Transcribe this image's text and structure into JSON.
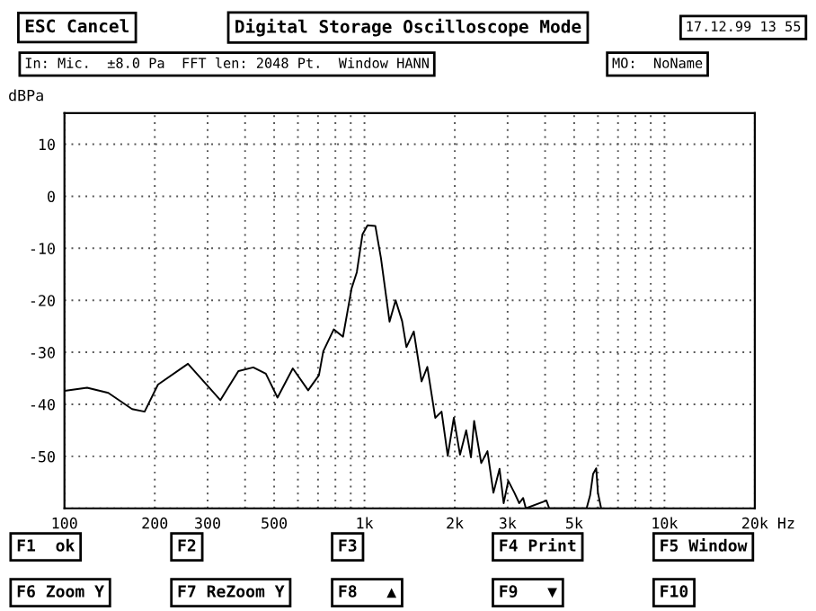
{
  "chart_data": {
    "type": "line",
    "title": "Digital Storage Oscilloscope Mode",
    "ylabel": "dBPa",
    "annotations": [
      "ESC Cancel",
      "17.12.99 13 55",
      "In: Mic.  ±8.0 Pa  FFT len: 2048 Pt.  Window HANN",
      "MO:  NoName",
      "F1  ok",
      "F2",
      "F3",
      "F4 Print",
      "F5 Window",
      "F6 Zoom Y",
      "F7 ReZoom Y",
      "F8   ▲",
      "F9   ▼",
      "F10"
    ],
    "log": "x",
    "xlim": [
      100,
      20000
    ],
    "ylim": [
      -60,
      16
    ],
    "xticks": [
      100,
      200,
      300,
      {
        "value": 400,
        "label": null
      },
      500,
      {
        "value": 600,
        "label": null
      },
      {
        "value": 700,
        "label": null
      },
      {
        "value": 800,
        "label": null
      },
      {
        "value": 900,
        "label": null
      },
      {
        "value": 1000,
        "label": "1k"
      },
      {
        "value": 2000,
        "label": "2k"
      },
      {
        "value": 3000,
        "label": "3k"
      },
      {
        "value": 4000,
        "label": null
      },
      {
        "value": 5000,
        "label": "5k"
      },
      {
        "value": 6000,
        "label": null
      },
      {
        "value": 7000,
        "label": null
      },
      {
        "value": 8000,
        "label": null
      },
      {
        "value": 9000,
        "label": null
      },
      {
        "value": 10000,
        "label": "10k"
      },
      {
        "value": 20000,
        "label": "20k"
      }
    ],
    "xlabel": "Hz",
    "yticks": [
      {
        "value": -60,
        "label": null
      },
      -50,
      -40,
      -30,
      -20,
      -10,
      0,
      10
    ],
    "grid": true,
    "line_style": "solid",
    "marker": "none",
    "series": [
      {
        "color": "#000000",
        "x": [
          100,
          119,
          140,
          168,
          185,
          205,
          258,
          331,
          380,
          426,
          469,
          513,
          577,
          649,
          705,
          729,
          790,
          848,
          906,
          943,
          985,
          1024,
          1087,
          1135,
          1212,
          1270,
          1335,
          1380,
          1460,
          1550,
          1620,
          1722,
          1807,
          1895,
          1985,
          2082,
          2183,
          2265,
          2320,
          2450,
          2570,
          2690,
          2820,
          2910,
          3015,
          3160,
          3280,
          3380,
          3450,
          4040,
          4130,
          5500,
          5650,
          5780,
          5920,
          6000,
          6150
        ],
        "values": [
          -37.4,
          -36.8,
          -37.8,
          -40.9,
          -41.4,
          -36.2,
          -32.2,
          -39.2,
          -33.6,
          -32.9,
          -34.1,
          -38.7,
          -33.1,
          -37.3,
          -34.4,
          -29.8,
          -25.6,
          -27,
          -17.7,
          -14.6,
          -7.3,
          -5.6,
          -5.7,
          -11.9,
          -24.1,
          -20,
          -24,
          -29,
          -26,
          -35.6,
          -32.8,
          -42.6,
          -41.4,
          -49.9,
          -42.6,
          -49.7,
          -45,
          -50.2,
          -43.2,
          -51.3,
          -49,
          -57,
          -52.4,
          -59,
          -54.7,
          -57,
          -59,
          -58,
          -60,
          -58.5,
          -60,
          -60,
          -57.5,
          -53.4,
          -52.3,
          -57,
          -60
        ]
      }
    ]
  }
}
